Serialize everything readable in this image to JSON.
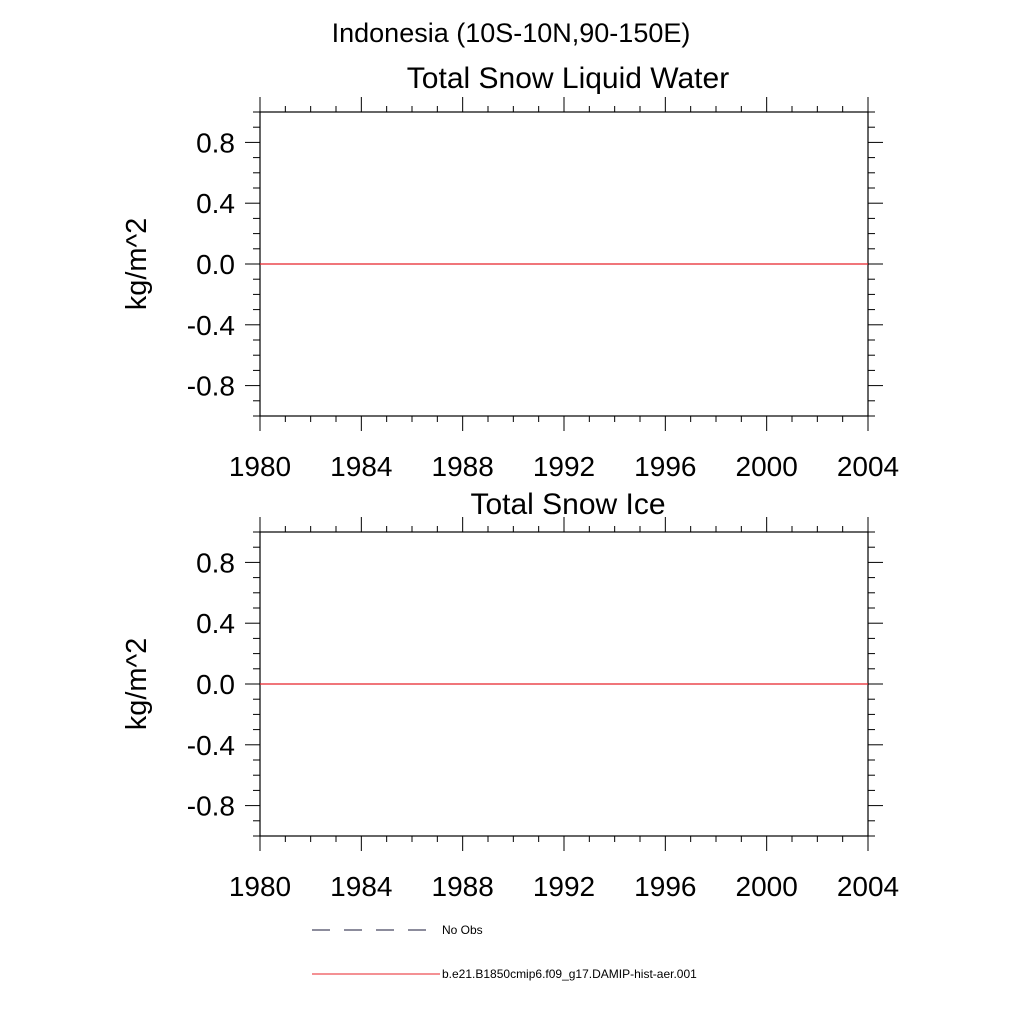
{
  "figure": {
    "suptitle": "Indonesia (10S-10N,90-150E)"
  },
  "legend": {
    "entries": [
      {
        "label": "No Obs",
        "color": "#1a1a3a",
        "style": "dashed"
      },
      {
        "label": "b.e21.B1850cmip6.f09_g17.DAMIP-hist-aer.001",
        "color": "#e8232a",
        "style": "solid"
      }
    ]
  },
  "chart_data": [
    {
      "type": "line",
      "title": "Total Snow Liquid Water",
      "xlabel": "",
      "ylabel": "kg/m^2",
      "xlim": [
        1980,
        2004
      ],
      "ylim": [
        -1.0,
        1.0
      ],
      "xticks": [
        1980,
        1984,
        1988,
        1992,
        1996,
        2000,
        2004
      ],
      "xtick_labels": [
        "1980",
        "1984",
        "1988",
        "1992",
        "1996",
        "2000",
        "2004"
      ],
      "yticks": [
        0.8,
        0.4,
        0.0,
        -0.4,
        -0.8
      ],
      "ytick_labels": [
        "0.8",
        "0.4",
        "0.0",
        "-0.4",
        "-0.8"
      ],
      "grid": false,
      "series": [
        {
          "name": "b.e21.B1850cmip6.f09_g17.DAMIP-hist-aer.001",
          "color": "#e8232a",
          "x": [
            1980,
            2004
          ],
          "y": [
            0.0,
            0.0
          ]
        }
      ]
    },
    {
      "type": "line",
      "title": "Total Snow Ice",
      "xlabel": "",
      "ylabel": "kg/m^2",
      "xlim": [
        1980,
        2004
      ],
      "ylim": [
        -1.0,
        1.0
      ],
      "xticks": [
        1980,
        1984,
        1988,
        1992,
        1996,
        2000,
        2004
      ],
      "xtick_labels": [
        "1980",
        "1984",
        "1988",
        "1992",
        "1996",
        "2000",
        "2004"
      ],
      "yticks": [
        0.8,
        0.4,
        0.0,
        -0.4,
        -0.8
      ],
      "ytick_labels": [
        "0.8",
        "0.4",
        "0.0",
        "-0.4",
        "-0.8"
      ],
      "grid": false,
      "series": [
        {
          "name": "b.e21.B1850cmip6.f09_g17.DAMIP-hist-aer.001",
          "color": "#e8232a",
          "x": [
            1980,
            2004
          ],
          "y": [
            0.0,
            0.0
          ]
        }
      ]
    }
  ]
}
